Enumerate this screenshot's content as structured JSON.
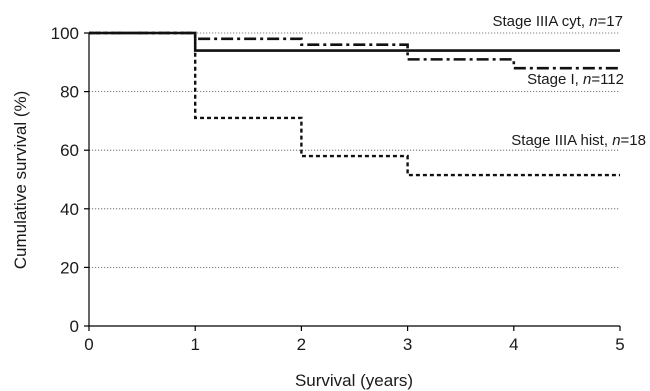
{
  "chart_data": {
    "type": "line",
    "title": "",
    "xlabel": "Survival (years)",
    "ylabel": "Cumulative survival (%)",
    "xlim": [
      0,
      5
    ],
    "ylim": [
      0,
      100
    ],
    "xticks": [
      0,
      1,
      2,
      3,
      4,
      5
    ],
    "yticks": [
      0,
      20,
      40,
      60,
      80,
      100
    ],
    "grid": "horizontal dotted",
    "legend": "inline labels",
    "series": [
      {
        "name": "Stage IIIA cyt, n=17",
        "label_parts": [
          "Stage IIIA cyt, ",
          "n",
          "=17"
        ],
        "line_style": "dash-dot",
        "x": [
          0,
          1,
          2,
          3,
          4,
          5
        ],
        "y": [
          100,
          98,
          96,
          91,
          88,
          88
        ]
      },
      {
        "name": "Stage I, n=112",
        "label_parts": [
          "Stage I, ",
          "n",
          "=112"
        ],
        "line_style": "solid",
        "x": [
          0,
          1,
          2,
          3,
          4,
          5
        ],
        "y": [
          100,
          94,
          94,
          94,
          94,
          94
        ]
      },
      {
        "name": "Stage IIIA hist, n=18",
        "label_parts": [
          "Stage IIIA hist, ",
          "n",
          "=18"
        ],
        "line_style": "dotted",
        "x": [
          0,
          1,
          2,
          3,
          4,
          5
        ],
        "y": [
          100,
          71,
          58,
          51.5,
          51.5,
          51.5
        ]
      }
    ]
  }
}
